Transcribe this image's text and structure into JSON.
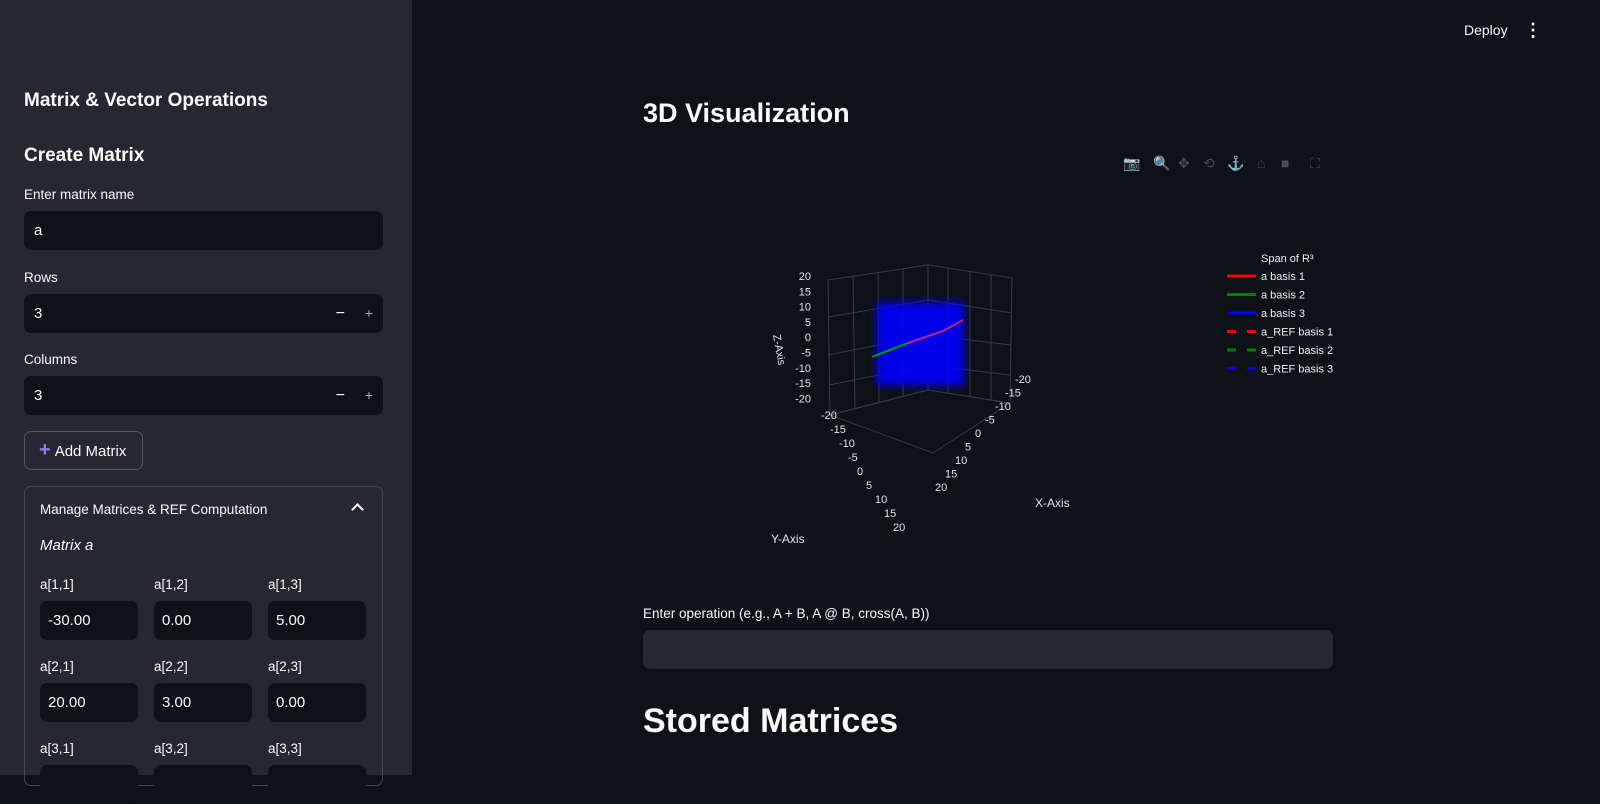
{
  "sidebar": {
    "title": "Matrix & Vector Operations",
    "create_heading": "Create Matrix",
    "name_label": "Enter matrix name",
    "name_value": "a",
    "rows_label": "Rows",
    "rows_value": "3",
    "cols_label": "Columns",
    "cols_value": "3",
    "minus": "−",
    "plus": "+",
    "add_icon": "+",
    "add_label": "Add Matrix",
    "expander": {
      "title": "Manage Matrices & REF Computation",
      "chevron": "^",
      "matrix_label": "Matrix a",
      "cells": [
        {
          "label": "a[1,1]",
          "value": "-30.00"
        },
        {
          "label": "a[1,2]",
          "value": "0.00"
        },
        {
          "label": "a[1,3]",
          "value": "5.00"
        },
        {
          "label": "a[2,1]",
          "value": "20.00"
        },
        {
          "label": "a[2,2]",
          "value": "3.00"
        },
        {
          "label": "a[2,3]",
          "value": "0.00"
        },
        {
          "label": "a[3,1]",
          "value": ""
        },
        {
          "label": "a[3,2]",
          "value": ""
        },
        {
          "label": "a[3,3]",
          "value": ""
        }
      ]
    }
  },
  "header": {
    "deploy": "Deploy",
    "menu": "⋮"
  },
  "main": {
    "viz_title": "3D Visualization",
    "toolbar": [
      "camera-icon",
      "zoom-icon",
      "pan-icon",
      "orbit-icon",
      "turntable-icon",
      "home-icon",
      "video-camera-icon",
      "fullscreen-icon"
    ],
    "op_label": "Enter operation (e.g., A + B, A @ B, cross(A, B))",
    "op_value": "",
    "stored_title": "Stored Matrices"
  },
  "plot": {
    "legend_title": "Span of R³",
    "legend": [
      {
        "name": "a basis 1",
        "color": "#ff0000",
        "dash": false
      },
      {
        "name": "a basis 2",
        "color": "#008000",
        "dash": false
      },
      {
        "name": "a basis 3",
        "color": "#0000ff",
        "dash": false
      },
      {
        "name": "a_REF basis 1",
        "color": "#ff0000",
        "dash": true
      },
      {
        "name": "a_REF basis 2",
        "color": "#008000",
        "dash": true
      },
      {
        "name": "a_REF basis 3",
        "color": "#0000ff",
        "dash": true
      }
    ],
    "xaxis": {
      "title": "X-Axis",
      "ticks": [
        "20",
        "15",
        "10",
        "5",
        "0",
        "-5",
        "-10",
        "-15",
        "-20"
      ]
    },
    "yaxis": {
      "title": "Y-Axis",
      "ticks": [
        "-20",
        "-15",
        "-10",
        "-5",
        "0",
        "5",
        "10",
        "15",
        "20"
      ]
    },
    "zaxis": {
      "title": "Z-Axis",
      "ticks": [
        "20",
        "15",
        "10",
        "5",
        "0",
        "-5",
        "-10",
        "-15",
        "-20"
      ]
    }
  }
}
